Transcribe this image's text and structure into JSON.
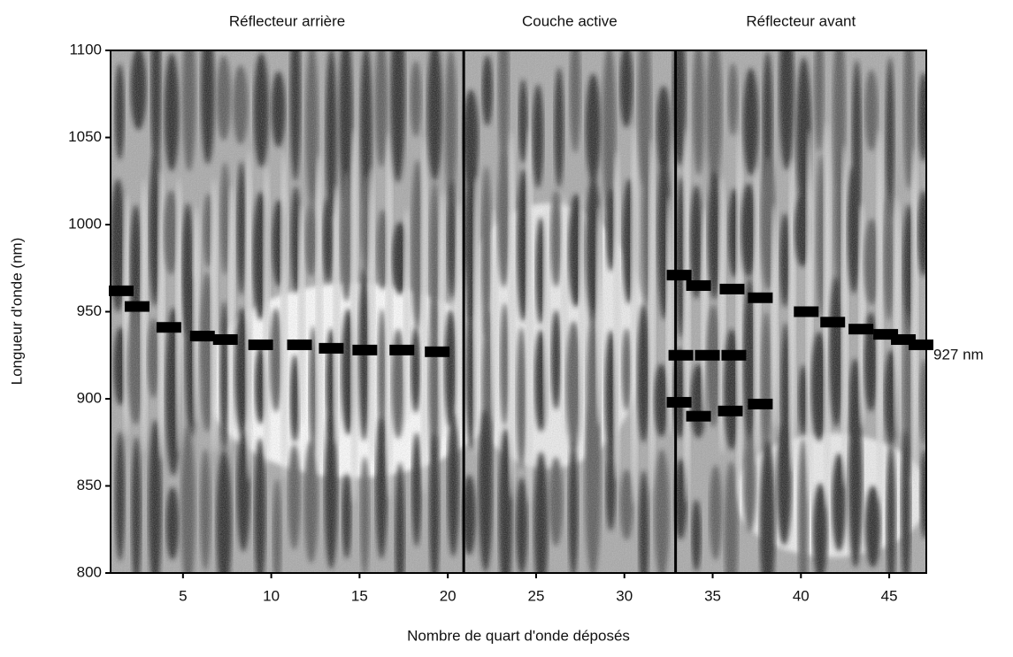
{
  "chart_data": {
    "type": "scatter",
    "xlabel": "Nombre de quart d'onde déposés",
    "ylabel": "Longueur d'onde (nm)",
    "xlim": [
      0.9,
      47.1
    ],
    "ylim": [
      800,
      1100
    ],
    "xticks": [
      5,
      10,
      15,
      20,
      25,
      30,
      35,
      40,
      45
    ],
    "yticks": [
      800,
      850,
      900,
      950,
      1000,
      1050,
      1100
    ],
    "boundaries": [
      20.9,
      32.9
    ],
    "sections": [
      {
        "label": "Réflecteur arrière"
      },
      {
        "label": "Couche active"
      },
      {
        "label": "Réflecteur avant"
      }
    ],
    "marker_label": {
      "value": 927,
      "label": "927 nm"
    },
    "color": "#000000",
    "x": [
      1.5,
      2.4,
      4.2,
      6.1,
      7.4,
      9.4,
      11.6,
      13.4,
      15.3,
      17.4,
      19.4,
      33.1,
      34.2,
      36.1,
      37.7,
      40.3,
      41.8,
      43.4,
      44.8,
      45.8,
      46.8,
      33.2,
      34.7,
      36.2,
      33.1,
      34.2,
      36.0,
      37.7
    ],
    "values": [
      962,
      953,
      941,
      936,
      934,
      931,
      931,
      929,
      928,
      928,
      927,
      971,
      965,
      963,
      958,
      950,
      944,
      940,
      937,
      934,
      931,
      925,
      925,
      925,
      898,
      890,
      893,
      897
    ]
  }
}
